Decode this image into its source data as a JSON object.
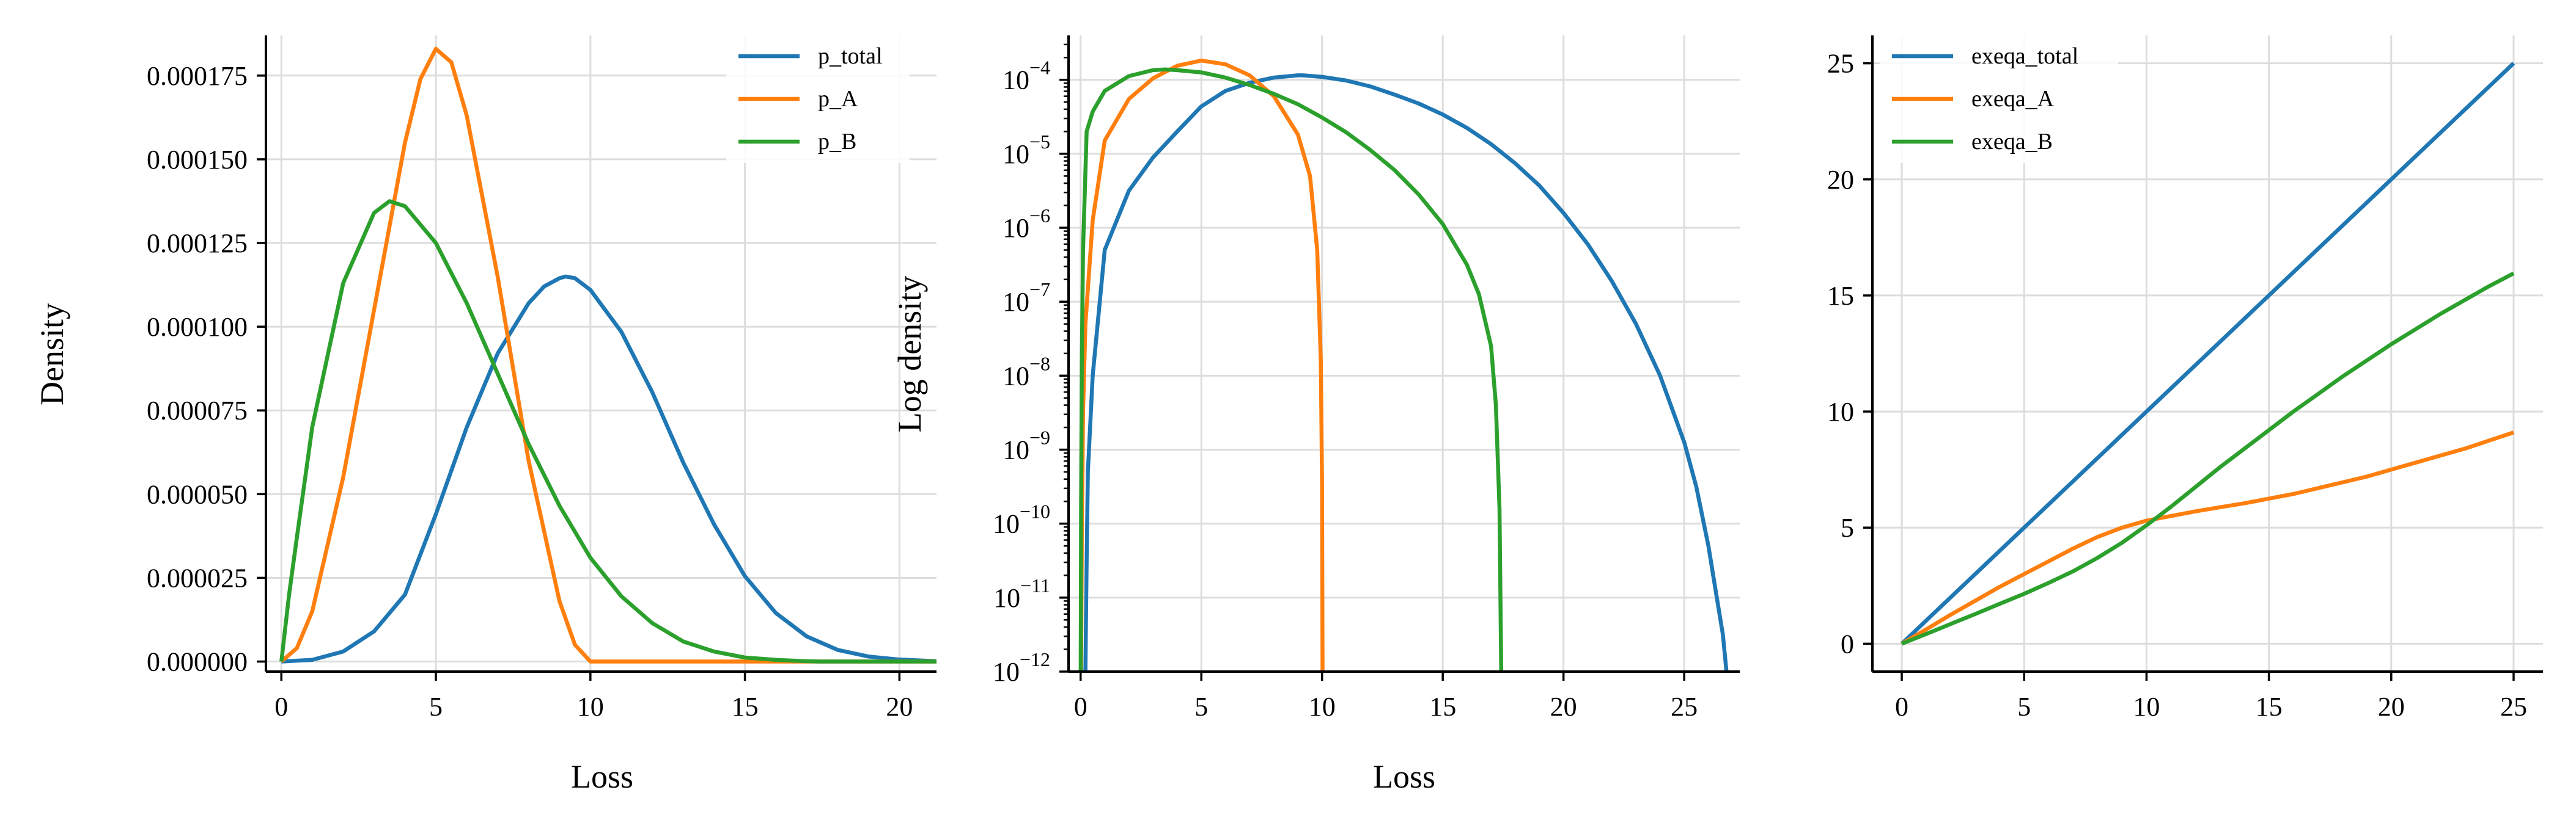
{
  "figure": {
    "background": "#ffffff",
    "grid_color": "#dddddd",
    "series_colors": {
      "blue": "#1f77b4",
      "orange": "#ff7f0e",
      "green": "#2ca02c"
    }
  },
  "chart_data": [
    {
      "type": "line",
      "title": "",
      "xlabel": "Loss",
      "ylabel": "Density",
      "xlim": [
        -0.5,
        21.2
      ],
      "ylim": [
        -3e-06,
        0.000187
      ],
      "grid": true,
      "legend": "top-right",
      "xticks": [
        0,
        5,
        10,
        15,
        20
      ],
      "xtick_labels": [
        "0",
        "5",
        "10",
        "15",
        "20"
      ],
      "yticks": [
        0,
        2.5e-05,
        5e-05,
        7.5e-05,
        0.0001,
        0.000125,
        0.00015,
        0.000175
      ],
      "ytick_labels": [
        "0.000000",
        "0.000025",
        "0.000050",
        "0.000075",
        "0.000100",
        "0.000125",
        "0.000150",
        "0.000175"
      ],
      "series": [
        {
          "name": "p_total",
          "color": "#1f77b4",
          "x": [
            0,
            1,
            2,
            3,
            4,
            5,
            6,
            7,
            8,
            8.5,
            9,
            9.2,
            9.5,
            10,
            11,
            12,
            13,
            14,
            15,
            16,
            17,
            18,
            19,
            20,
            21,
            21.2
          ],
          "y": [
            0,
            5e-07,
            3e-06,
            9e-06,
            2e-05,
            4.4e-05,
            7e-05,
            9.2e-05,
            0.000107,
            0.000112,
            0.0001145,
            0.000115,
            0.0001145,
            0.000111,
            9.85e-05,
            8.05e-05,
            5.95e-05,
            4.1e-05,
            2.55e-05,
            1.45e-05,
            7.5e-06,
            3.5e-06,
            1.5e-06,
            6e-07,
            2e-07,
            1e-07
          ]
        },
        {
          "name": "p_A",
          "color": "#ff7f0e",
          "x": [
            0,
            0.5,
            1,
            2,
            3,
            4,
            4.5,
            5,
            5.5,
            6,
            7,
            8,
            9,
            9.5,
            10,
            11,
            15,
            21.2
          ],
          "y": [
            0,
            4e-06,
            1.5e-05,
            5.5e-05,
            0.000105,
            0.000155,
            0.000174,
            0.000183,
            0.000179,
            0.000163,
            0.000115,
            6e-05,
            1.8e-05,
            5e-06,
            0,
            0,
            0,
            0
          ]
        },
        {
          "name": "p_B",
          "color": "#2ca02c",
          "x": [
            0,
            0.25,
            0.5,
            1,
            2,
            3,
            3.5,
            4,
            5,
            6,
            7,
            8,
            9,
            10,
            11,
            12,
            13,
            14,
            15,
            16,
            17,
            17.4,
            21.2
          ],
          "y": [
            0,
            2e-05,
            3.7e-05,
            7e-05,
            0.000113,
            0.000134,
            0.0001375,
            0.000136,
            0.000125,
            0.000107,
            8.6e-05,
            6.5e-05,
            4.65e-05,
            3.1e-05,
            1.95e-05,
            1.15e-05,
            6e-06,
            3e-06,
            1.2e-06,
            5e-07,
            1e-07,
            0,
            0
          ]
        }
      ]
    },
    {
      "type": "line",
      "title": "",
      "xlabel": "Loss",
      "ylabel": "Log density",
      "yscale": "log",
      "xlim": [
        -0.5,
        27.3
      ],
      "ylim_log10": [
        -12,
        -3.4
      ],
      "grid": true,
      "xticks": [
        0,
        5,
        10,
        15,
        20,
        25
      ],
      "xtick_labels": [
        "0",
        "5",
        "10",
        "15",
        "20",
        "25"
      ],
      "ytick_bases": [
        "10",
        "10",
        "10",
        "10",
        "10",
        "10",
        "10",
        "10",
        "10"
      ],
      "ytick_exponents": [
        "−12",
        "−11",
        "−10",
        "−9",
        "−8",
        "−7",
        "−6",
        "−5",
        "−4"
      ],
      "ytick_log10": [
        -12,
        -11,
        -10,
        -9,
        -8,
        -7,
        -6,
        -5,
        -4
      ],
      "series": [
        {
          "name": "p_total",
          "color": "#1f77b4",
          "x": [
            0.2,
            0.25,
            0.3,
            0.5,
            1,
            2,
            3,
            4,
            5,
            6,
            7,
            8,
            9,
            9.2,
            10,
            11,
            12,
            13,
            14,
            15,
            16,
            17,
            18,
            19,
            20,
            21,
            22,
            23,
            24,
            25,
            25.5,
            26,
            26.3,
            26.6,
            26.75
          ],
          "y_log10": [
            -12,
            -10.5,
            -9.3,
            -8.0,
            -6.3,
            -5.5,
            -5.05,
            -4.7,
            -4.36,
            -4.15,
            -4.04,
            -3.97,
            -3.94,
            -3.94,
            -3.96,
            -4.01,
            -4.09,
            -4.2,
            -4.32,
            -4.47,
            -4.65,
            -4.87,
            -5.13,
            -5.43,
            -5.8,
            -6.22,
            -6.72,
            -7.3,
            -8.0,
            -8.9,
            -9.5,
            -10.3,
            -10.9,
            -11.5,
            -12
          ]
        },
        {
          "name": "p_A",
          "color": "#ff7f0e",
          "x": [
            0.02,
            0.05,
            0.1,
            0.2,
            0.5,
            1,
            2,
            3,
            4,
            5,
            6,
            7,
            8,
            9,
            9.5,
            9.8,
            9.95,
            10,
            10.02
          ],
          "y_log10": [
            -12,
            -10.2,
            -8.5,
            -7.3,
            -5.9,
            -4.82,
            -4.26,
            -3.98,
            -3.81,
            -3.74,
            -3.79,
            -3.94,
            -4.22,
            -4.74,
            -5.3,
            -6.3,
            -7.8,
            -9.5,
            -12
          ]
        },
        {
          "name": "p_B",
          "color": "#2ca02c",
          "x": [
            0.005,
            0.02,
            0.05,
            0.1,
            0.25,
            0.5,
            1,
            2,
            3,
            3.5,
            4,
            5,
            6,
            7,
            8,
            9,
            10,
            11,
            12,
            13,
            14,
            15,
            16,
            16.5,
            17,
            17.2,
            17.35,
            17.42
          ],
          "y_log10": [
            -12,
            -9.8,
            -7.8,
            -6.3,
            -4.7,
            -4.43,
            -4.15,
            -3.95,
            -3.87,
            -3.86,
            -3.87,
            -3.9,
            -3.97,
            -4.07,
            -4.19,
            -4.33,
            -4.51,
            -4.71,
            -4.95,
            -5.22,
            -5.55,
            -5.95,
            -6.5,
            -6.9,
            -7.6,
            -8.4,
            -9.8,
            -12
          ]
        }
      ]
    },
    {
      "type": "line",
      "title": "",
      "xlabel": "",
      "ylabel": "",
      "xlim": [
        -1.2,
        26.2
      ],
      "ylim": [
        -1.2,
        26.2
      ],
      "grid": true,
      "legend": "top-left",
      "xticks": [
        0,
        5,
        10,
        15,
        20,
        25
      ],
      "xtick_labels": [
        "0",
        "5",
        "10",
        "15",
        "20",
        "25"
      ],
      "yticks": [
        0,
        5,
        10,
        15,
        20,
        25
      ],
      "ytick_labels": [
        "0",
        "5",
        "10",
        "15",
        "20",
        "25"
      ],
      "series": [
        {
          "name": "exeqa_total",
          "color": "#1f77b4",
          "x": [
            0,
            25
          ],
          "y": [
            0,
            25
          ]
        },
        {
          "name": "exeqa_A",
          "color": "#ff7f0e",
          "x": [
            0,
            1,
            2,
            3,
            4,
            5,
            6,
            7,
            8,
            9,
            10,
            11,
            12,
            13,
            14,
            15,
            16,
            17,
            18,
            19,
            20,
            21,
            22,
            23,
            24,
            25
          ],
          "y": [
            0,
            0.62,
            1.25,
            1.85,
            2.45,
            3.0,
            3.55,
            4.1,
            4.6,
            5.0,
            5.3,
            5.5,
            5.7,
            5.88,
            6.05,
            6.25,
            6.45,
            6.7,
            6.95,
            7.2,
            7.5,
            7.8,
            8.1,
            8.4,
            8.75,
            9.1
          ]
        },
        {
          "name": "exeqa_B",
          "color": "#2ca02c",
          "x": [
            0,
            1,
            2,
            3,
            4,
            5,
            6,
            7,
            8,
            9,
            10,
            11,
            12,
            13,
            14,
            15,
            16,
            17,
            18,
            19,
            20,
            21,
            22,
            23,
            24,
            25
          ],
          "y": [
            0,
            0.42,
            0.85,
            1.28,
            1.72,
            2.15,
            2.62,
            3.12,
            3.7,
            4.35,
            5.1,
            5.9,
            6.75,
            7.6,
            8.4,
            9.2,
            10.0,
            10.75,
            11.5,
            12.2,
            12.9,
            13.55,
            14.2,
            14.8,
            15.4,
            15.95
          ]
        }
      ]
    }
  ]
}
